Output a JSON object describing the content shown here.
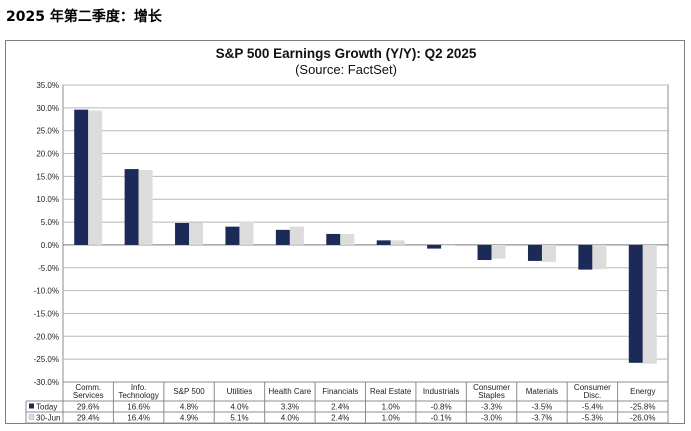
{
  "heading": "2025 年第二季度：增长",
  "chart_data": {
    "type": "bar",
    "title": "S&P 500 Earnings Growth (Y/Y): Q2 2025",
    "subtitle": "(Source: FactSet)",
    "categories": [
      [
        "Comm.",
        "Services"
      ],
      [
        "Info.",
        "Technology"
      ],
      [
        "S&P 500"
      ],
      [
        "Utilities"
      ],
      [
        "Health Care"
      ],
      [
        "Financials"
      ],
      [
        "Real Estate"
      ],
      [
        "Industrials"
      ],
      [
        "Consumer",
        "Staples"
      ],
      [
        "Materials"
      ],
      [
        "Consumer",
        "Disc."
      ],
      [
        "Energy"
      ]
    ],
    "series": [
      {
        "name": "Today",
        "color": "#1b2a56",
        "values": [
          29.6,
          16.6,
          4.8,
          4.0,
          3.3,
          2.4,
          1.0,
          -0.8,
          -3.3,
          -3.5,
          -5.4,
          -25.8
        ],
        "labels": [
          "29.6%",
          "16.6%",
          "4.8%",
          "4.0%",
          "3.3%",
          "2.4%",
          "1.0%",
          "-0.8%",
          "-3.3%",
          "-3.5%",
          "-5.4%",
          "-25.8%"
        ]
      },
      {
        "name": "30-Jun",
        "color": "#dcdcdc",
        "values": [
          29.4,
          16.4,
          4.9,
          5.1,
          4.0,
          2.4,
          1.0,
          -0.1,
          -3.0,
          -3.7,
          -5.3,
          -26.0
        ],
        "labels": [
          "29.4%",
          "16.4%",
          "4.9%",
          "5.1%",
          "4.0%",
          "2.4%",
          "1.0%",
          "-0.1%",
          "-3.0%",
          "-3.7%",
          "-5.3%",
          "-26.0%"
        ]
      }
    ],
    "yticks": [
      "35.0%",
      "30.0%",
      "25.0%",
      "20.0%",
      "15.0%",
      "10.0%",
      "5.0%",
      "0.0%",
      "-5.0%",
      "-10.0%",
      "-15.0%",
      "-20.0%",
      "-25.0%",
      "-30.0%"
    ],
    "ylim": [
      -30,
      35
    ],
    "grid": true,
    "legend": "data-table"
  }
}
